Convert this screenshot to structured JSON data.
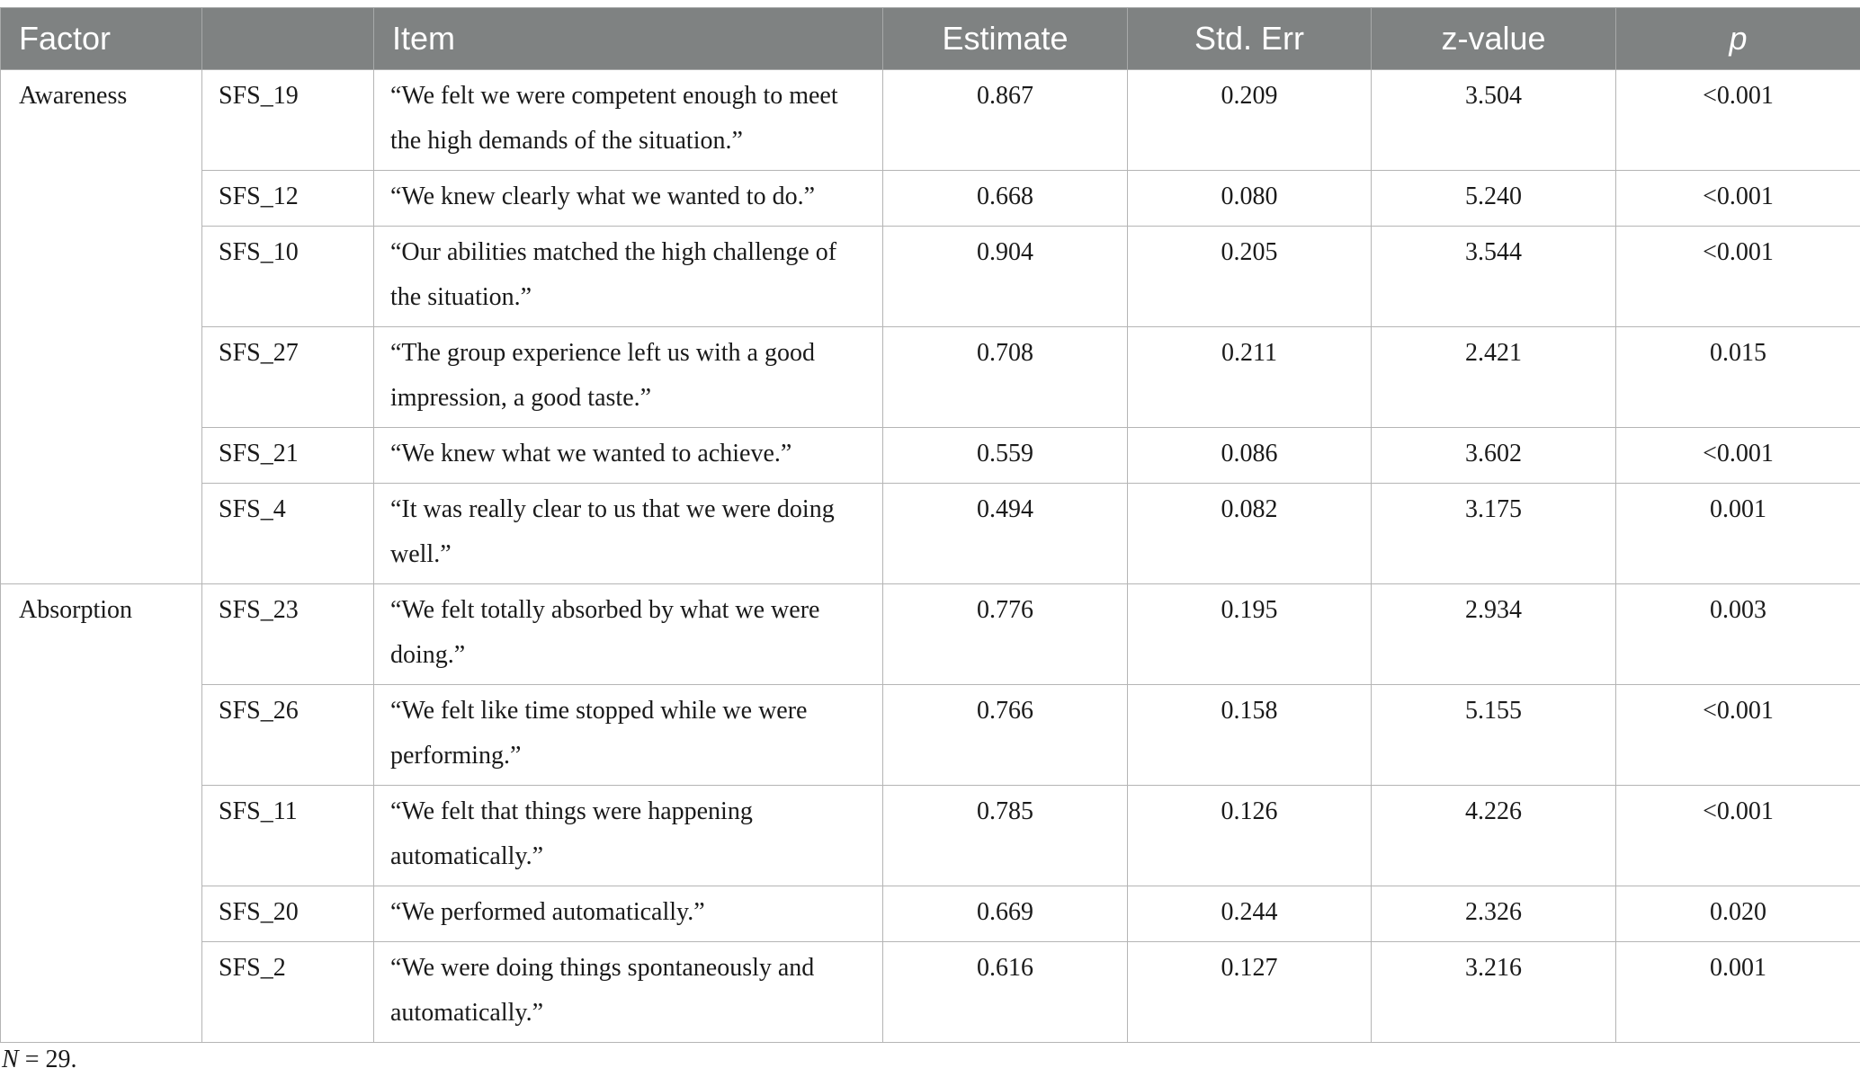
{
  "table": {
    "headers": {
      "factor": "Factor",
      "code": "",
      "item": "Item",
      "estimate": "Estimate",
      "std_err": "Std. Err",
      "z_value": "z-value",
      "p": "p"
    },
    "groups": [
      {
        "factor": "Awareness",
        "rows": [
          {
            "code": "SFS_19",
            "item": "“We felt we were competent enough to meet the high demands of the situation.”",
            "estimate": "0.867",
            "std_err": "0.209",
            "z_value": "3.504",
            "p": "<0.001"
          },
          {
            "code": "SFS_12",
            "item": "“We knew clearly what we wanted to do.”",
            "estimate": "0.668",
            "std_err": "0.080",
            "z_value": "5.240",
            "p": "<0.001"
          },
          {
            "code": "SFS_10",
            "item": "“Our abilities matched the high challenge of the situation.”",
            "estimate": "0.904",
            "std_err": "0.205",
            "z_value": "3.544",
            "p": "<0.001"
          },
          {
            "code": "SFS_27",
            "item": "“The group experience left us with a good impression, a good taste.”",
            "estimate": "0.708",
            "std_err": "0.211",
            "z_value": "2.421",
            "p": "0.015"
          },
          {
            "code": "SFS_21",
            "item": "“We knew what we wanted to achieve.”",
            "estimate": "0.559",
            "std_err": "0.086",
            "z_value": "3.602",
            "p": "<0.001"
          },
          {
            "code": "SFS_4",
            "item": "“It was really clear to us that we were doing well.”",
            "estimate": "0.494",
            "std_err": "0.082",
            "z_value": "3.175",
            "p": "0.001"
          }
        ]
      },
      {
        "factor": "Absorption",
        "rows": [
          {
            "code": "SFS_23",
            "item": "“We felt totally absorbed by what we were doing.”",
            "estimate": "0.776",
            "std_err": "0.195",
            "z_value": "2.934",
            "p": "0.003"
          },
          {
            "code": "SFS_26",
            "item": "“We felt like time stopped while we were performing.”",
            "estimate": "0.766",
            "std_err": "0.158",
            "z_value": "5.155",
            "p": "<0.001"
          },
          {
            "code": "SFS_11",
            "item": "“We felt that things were happening automatically.”",
            "estimate": "0.785",
            "std_err": "0.126",
            "z_value": "4.226",
            "p": "<0.001"
          },
          {
            "code": "SFS_20",
            "item": "“We performed automatically.”",
            "estimate": "0.669",
            "std_err": "0.244",
            "z_value": "2.326",
            "p": "0.020"
          },
          {
            "code": "SFS_2",
            "item": "“We were doing things spontaneously and automatically.”",
            "estimate": "0.616",
            "std_err": "0.127",
            "z_value": "3.216",
            "p": "0.001"
          }
        ]
      }
    ]
  },
  "note": {
    "var": "N",
    "rest": " = 29."
  }
}
